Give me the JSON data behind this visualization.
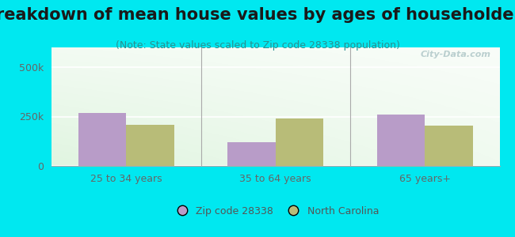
{
  "title": "Breakdown of mean house values by ages of householders",
  "subtitle": "(Note: State values scaled to Zip code 28338 population)",
  "categories": [
    "25 to 34 years",
    "35 to 64 years",
    "65 years+"
  ],
  "zip_values": [
    270000,
    120000,
    260000
  ],
  "nc_values": [
    210000,
    240000,
    205000
  ],
  "zip_color": "#b89cc8",
  "nc_color": "#b8bc78",
  "ylim": [
    0,
    600000
  ],
  "yticks": [
    0,
    250000,
    500000
  ],
  "ytick_labels": [
    "0",
    "250k",
    "500k"
  ],
  "bg_outer": "#00e8f0",
  "watermark": "City-Data.com",
  "legend_zip_label": "Zip code 28338",
  "legend_nc_label": "North Carolina",
  "bar_width": 0.32,
  "title_fontsize": 15,
  "subtitle_fontsize": 9,
  "axis_label_fontsize": 9,
  "legend_fontsize": 9
}
